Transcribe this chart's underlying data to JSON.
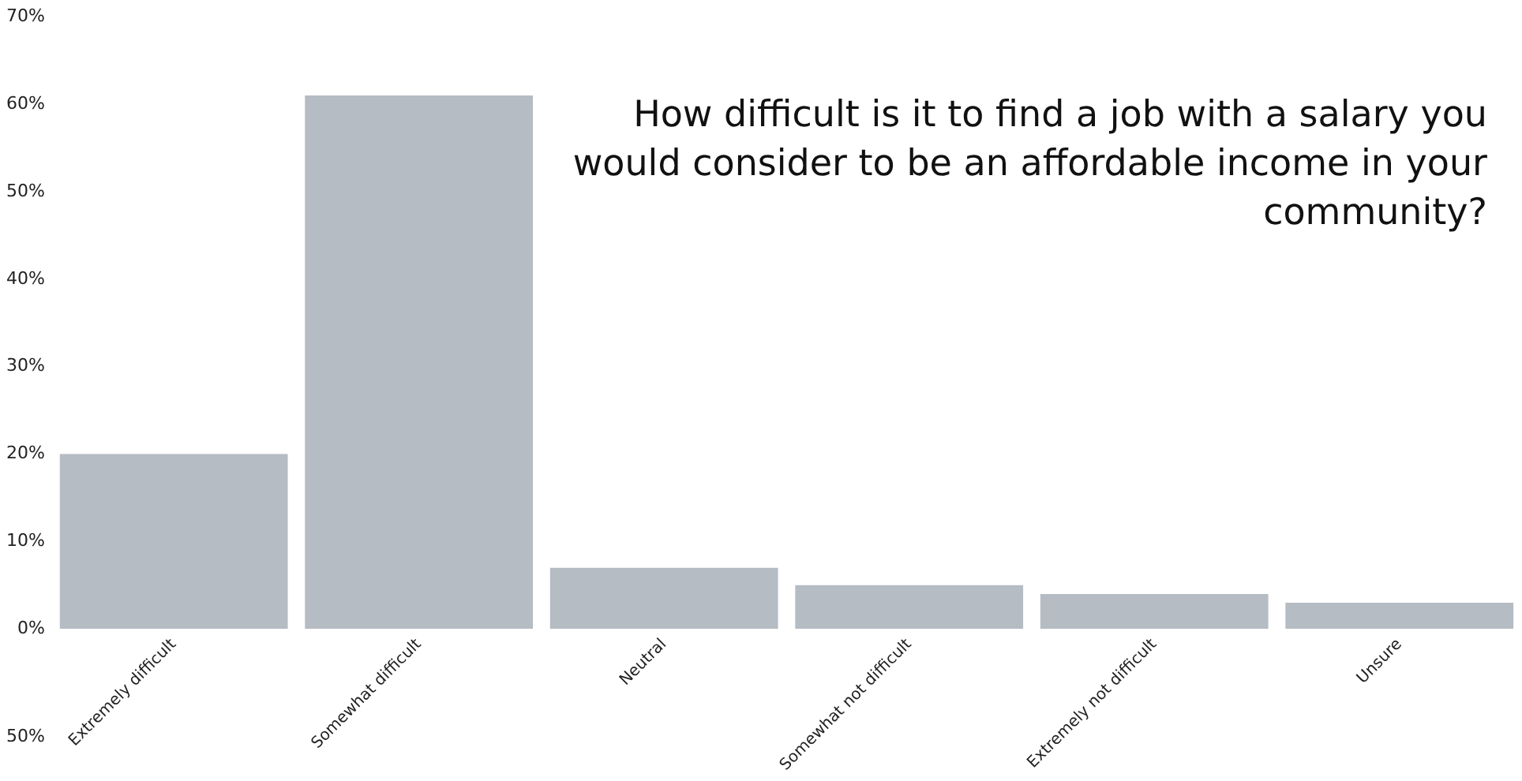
{
  "chart_data": {
    "type": "bar",
    "title": "How difficult is it to find a job with a salary you would consider to be an affordable income in your community?",
    "categories": [
      "Extremely difficult",
      "Somewhat difficult",
      "Neutral",
      "Somewhat not difficult",
      "Extremely not difficult",
      "Unsure"
    ],
    "values": [
      20,
      61,
      7,
      5,
      4,
      3
    ],
    "color": "#b5bcc3",
    "ylim": [
      0,
      70
    ],
    "yticks": [
      {
        "value": 0,
        "label": "0%"
      },
      {
        "value": 10,
        "label": "10%"
      },
      {
        "value": 20,
        "label": "20%"
      },
      {
        "value": 30,
        "label": "30%"
      },
      {
        "value": 40,
        "label": "40%"
      },
      {
        "value": 50,
        "label": "50%"
      },
      {
        "value": 60,
        "label": "60%"
      },
      {
        "value": 70,
        "label": "70%"
      }
    ],
    "grid": false,
    "legend": false,
    "annotations": [
      "50%"
    ]
  }
}
